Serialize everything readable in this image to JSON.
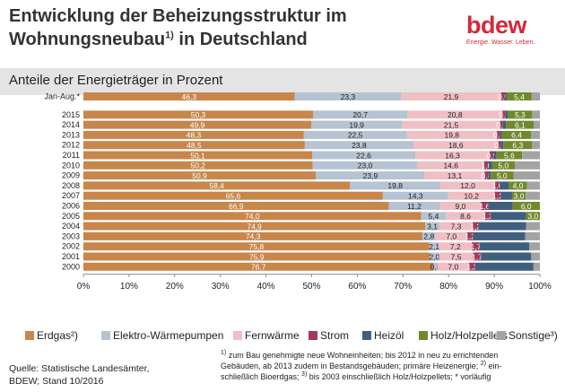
{
  "header": {
    "title_line1": "Entwicklung der Beheizungsstruktur im",
    "title_line2_a": "Wohnungsneubau",
    "title_line2_sup": "1)",
    "title_line2_b": " in Deutschland"
  },
  "logo": {
    "word": "bdew",
    "tagline": "Energie. Wasser. Leben."
  },
  "subtitle": "Anteile der Energieträger in Prozent",
  "source_line1": "Quelle: Statistische Landesämter,",
  "source_line2": "BDEW; Stand 10/2016",
  "footnote": {
    "sup1": "1)",
    "line1": " zum Bau genehmigte neue Wohneinheiten; bis 2012 in neu zu errichtenden",
    "line2_a": "Gebäuden, ab 2013 zudem in Bestandsgebäuden; primäre Heizenergie; ",
    "sup2": "2)",
    "line2_b": " ein-",
    "line3_a": "schließlich Bioerdgas;  ",
    "sup3": "3)",
    "line3_b": " bis 2003 einschließlich Holz/Holzpellets; * vorläufig"
  },
  "chart_data": {
    "type": "bar",
    "orientation": "horizontal",
    "stacked": true,
    "xlim": [
      0,
      100
    ],
    "x_ticks": [
      "0%",
      "10%",
      "20%",
      "30%",
      "40%",
      "50%",
      "60%",
      "70%",
      "80%",
      "90%",
      "100%"
    ],
    "grid": false,
    "legend_position": "bottom",
    "categories": [
      "Jan-Aug.*",
      "2015",
      "2014",
      "2013",
      "2012",
      "2011",
      "2010",
      "2009",
      "2008",
      "2007",
      "2006",
      "2005",
      "2004",
      "2003",
      "2002",
      "2001",
      "2000"
    ],
    "series": [
      {
        "name": "Erdgas²)",
        "color": "#c8864a",
        "label_color": "#ffffff",
        "values": [
          46.3,
          50.3,
          49.9,
          48.3,
          48.5,
          50.1,
          50.2,
          50.9,
          58.4,
          65.6,
          66.9,
          74.0,
          74.9,
          74.3,
          75.8,
          75.9,
          76.7
        ],
        "labels": [
          "46,3",
          "50,3",
          "49,9",
          "48,3",
          "48,5",
          "50,1",
          "50,2",
          "50,9",
          "58,4",
          "65,6",
          "66,9",
          "74,0",
          "74,9",
          "74,3",
          "75,8",
          "75,9",
          "76,7"
        ]
      },
      {
        "name": "Elektro-Wärmepumpen",
        "color": "#b5c3d3",
        "label_color": "#222222",
        "values": [
          23.3,
          20.7,
          19.9,
          22.5,
          23.8,
          22.6,
          23.0,
          23.9,
          19.8,
          14.3,
          11.2,
          5.4,
          3.1,
          2.8,
          2.1,
          2.0,
          0.8
        ],
        "labels": [
          "23,3",
          "20,7",
          "19,9",
          "22,5",
          "23,8",
          "22,6",
          "23,0",
          "23,9",
          "19,8",
          "14,3",
          "11,2",
          "5,4",
          "3,1",
          "2,8",
          "2,1",
          "2,0",
          "0,8"
        ]
      },
      {
        "name": "Fernwärme",
        "color": "#f0bfc4",
        "label_color": "#222222",
        "values": [
          21.9,
          20.8,
          21.5,
          19.8,
          18.6,
          16.3,
          14.6,
          13.1,
          12.0,
          10.2,
          9.0,
          8.6,
          7.3,
          7.0,
          7.2,
          7.5,
          7.0
        ],
        "labels": [
          "21,9",
          "20,8",
          "21,5",
          "19,8",
          "18,6",
          "16,3",
          "14,6",
          "13,1",
          "12,0",
          "10,2",
          "9,0",
          "8,6",
          "7,3",
          "7,0",
          "7,2",
          "7,5",
          "7,0"
        ]
      },
      {
        "name": "Strom",
        "color": "#a03a5c",
        "label_color": "#ffffff",
        "values": [
          0.9,
          0.7,
          0.6,
          0.7,
          0.6,
          0.9,
          1.0,
          0.8,
          1.0,
          1.3,
          1.6,
          1.2,
          1.2,
          1.2,
          1.7,
          1.7,
          1.3
        ],
        "labels": [
          "0,9",
          "0,7",
          "0,6",
          "0,7",
          "0,6",
          "0,9",
          "1,0",
          "0,8",
          "1,0",
          "1,3",
          "1,6",
          "1,2",
          "1,2",
          "1,2",
          "1,7",
          "1,7",
          "1,3"
        ]
      },
      {
        "name": "Heizöl",
        "color": "#3f5f7f",
        "label_color": "#ffffff",
        "values": [
          0.4,
          0.5,
          0.7,
          0.4,
          0.5,
          0.6,
          0.7,
          0.5,
          2.0,
          2.5,
          5.3,
          7.8,
          10.5,
          11.5,
          10.9,
          11.0,
          12.8
        ],
        "labels": [
          "",
          "",
          "",
          "",
          "",
          "",
          "",
          "",
          "",
          "",
          "",
          "",
          "",
          "",
          "",
          "",
          ""
        ]
      },
      {
        "name": "Holz/Holzpellets",
        "color": "#6f8a2c",
        "label_color": "#ffffff",
        "values": [
          5.4,
          5.3,
          6.1,
          6.4,
          6.3,
          5.6,
          5.0,
          5.0,
          4.0,
          3.0,
          6.0,
          3.0,
          0,
          0,
          0,
          0,
          0
        ],
        "labels": [
          "5,4",
          "5,3",
          "6,1",
          "6,4",
          "6,3",
          "5,6",
          "5,0",
          "5,0",
          "4,0",
          "3,0",
          "6,0",
          "3,0",
          "",
          "",
          "",
          "",
          ""
        ]
      },
      {
        "name": "Sonstige³)",
        "color": "#a3a3a3",
        "label_color": "#222222",
        "values": [
          1.8,
          1.7,
          1.3,
          1.9,
          1.7,
          3.9,
          5.5,
          5.8,
          2.8,
          3.1,
          0,
          0,
          3.0,
          3.2,
          2.3,
          1.9,
          1.4
        ],
        "labels": [
          "",
          "",
          "",
          "",
          "",
          "",
          "",
          "",
          "",
          "",
          "",
          "",
          "",
          "",
          "",
          "",
          ""
        ]
      }
    ]
  }
}
